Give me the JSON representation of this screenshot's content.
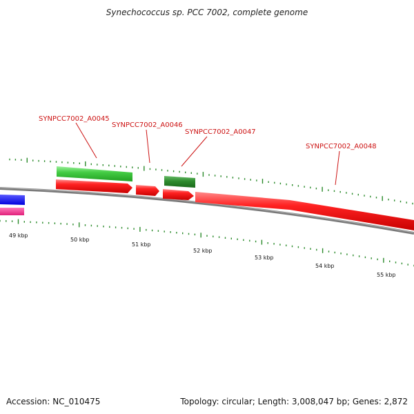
{
  "title": "Synechococcus sp. PCC 7002, complete genome",
  "footer": {
    "accession": "Accession: NC_010475",
    "summary": "Topology: circular; Length: 3,008,047 bp; Genes: 2,872"
  },
  "scale_ticks": [
    "49 kbp",
    "50 kbp",
    "51 kbp",
    "52 kbp",
    "53 kbp",
    "54 kbp",
    "55 kbp"
  ],
  "gene_labels": [
    "SYNPCC7002_A0045",
    "SYNPCC7002_A0046",
    "SYNPCC7002_A0047",
    "SYNPCC7002_A0048"
  ],
  "colors": {
    "backbone": "#7a7a7a",
    "cds_forward": "#ff0000",
    "gene_green": "#33cc33",
    "gene_dark_green": "#228822",
    "tick": "#2a8a2a",
    "label": "#cc1111",
    "blue_feature": "#0000ff",
    "pink_feature": "#ff3399"
  }
}
